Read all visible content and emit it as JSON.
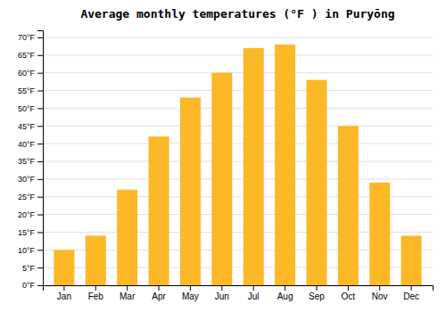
{
  "chart_data": {
    "type": "bar",
    "title": "Average monthly temperatures (°F ) in Puryōng",
    "categories": [
      "Jan",
      "Feb",
      "Mar",
      "Apr",
      "May",
      "Jun",
      "Jul",
      "Aug",
      "Sep",
      "Oct",
      "Nov",
      "Dec"
    ],
    "values": [
      10,
      14,
      27,
      42,
      53,
      60,
      67,
      68,
      58,
      45,
      29,
      14
    ],
    "color": "#FDB827",
    "ylim": [
      0,
      72
    ],
    "yticks": [
      {
        "value": 0,
        "label": "0°F"
      },
      {
        "value": 5,
        "label": "5°F"
      },
      {
        "value": 10,
        "label": "10°F"
      },
      {
        "value": 15,
        "label": "15°F"
      },
      {
        "value": 20,
        "label": "20°F"
      },
      {
        "value": 25,
        "label": "25°F"
      },
      {
        "value": 30,
        "label": "30°F"
      },
      {
        "value": 35,
        "label": "35°F"
      },
      {
        "value": 40,
        "label": "40°F"
      },
      {
        "value": 45,
        "label": "45°F"
      },
      {
        "value": 50,
        "label": "50°F"
      },
      {
        "value": 55,
        "label": "55°F"
      },
      {
        "value": 60,
        "label": "60°F"
      },
      {
        "value": 65,
        "label": "65°F"
      },
      {
        "value": 70,
        "label": "70°F"
      }
    ],
    "grid": true
  }
}
